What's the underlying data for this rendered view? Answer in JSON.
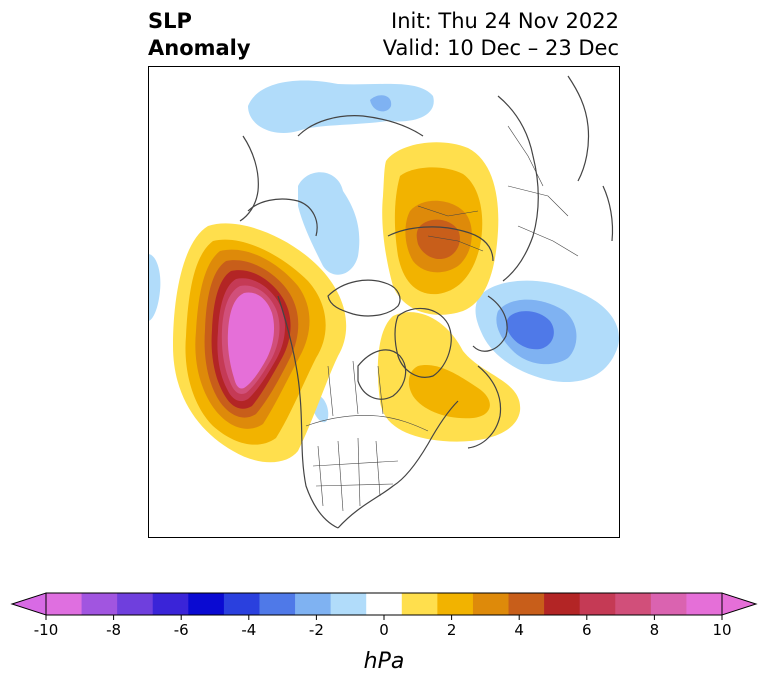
{
  "title": {
    "left_line1": "SLP",
    "left_line2": "Anomaly",
    "right_line1": "Init: Thu 24 Nov 2022",
    "right_line2": "Valid: 10 Dec – 23 Dec"
  },
  "colorbar": {
    "label": "hPa",
    "ticks": [
      "-10",
      "-8",
      "-6",
      "-4",
      "-2",
      "0",
      "2",
      "4",
      "6",
      "8",
      "10"
    ],
    "colors": [
      "#df6fe0",
      "#a155e0",
      "#6f3fdd",
      "#3a24d8",
      "#0a0ad2",
      "#2a40de",
      "#4f79e8",
      "#7fb2f2",
      "#b1dcfa",
      "#ffffff",
      "#ffdf4d",
      "#f2b300",
      "#de8a0a",
      "#c85e1a",
      "#b32525",
      "#c53a55",
      "#d14f7a",
      "#da63b0",
      "#e56fd8"
    ],
    "extend_low_color": "#d86ae5",
    "extend_high_color": "#e56fd8"
  },
  "map_colors": {
    "land_border": "#444444",
    "neg_light": "#b1dcfa",
    "neg_mid": "#7fb2f2",
    "neg_dark": "#4f79e8",
    "pos_1": "#ffdf4d",
    "pos_2": "#f2b300",
    "pos_3": "#de8a0a",
    "pos_4": "#c85e1a",
    "pos_5": "#b32525",
    "pos_6": "#c53a55",
    "pos_7": "#d14f7a",
    "pos_8": "#e56fd8"
  }
}
